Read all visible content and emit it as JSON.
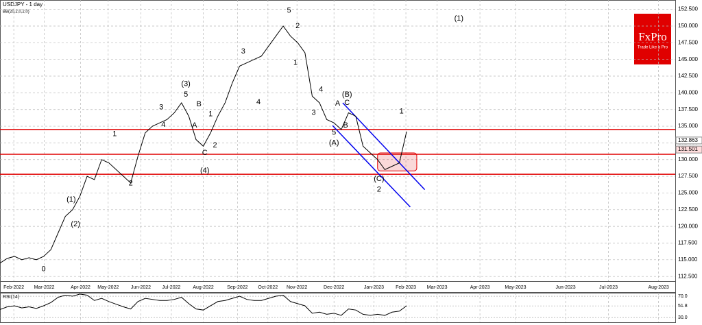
{
  "chart_data": [
    {
      "type": "line",
      "title": "USDJPY - 1 day",
      "subtitle": "BB(20,2,0,2,0)",
      "logo": {
        "brand": "FxPro",
        "tagline": "Trade Like a Pro"
      },
      "x": [
        0,
        1,
        2,
        3,
        4,
        5,
        6,
        7,
        8,
        9,
        10,
        11,
        12,
        13,
        14,
        15,
        16,
        17,
        18,
        19,
        20,
        21,
        22,
        23,
        24,
        25,
        26,
        27,
        28,
        29,
        30,
        31,
        32,
        33,
        34,
        35,
        36,
        37,
        38,
        39,
        40,
        41,
        42,
        43,
        44,
        45,
        46,
        47,
        48,
        49,
        50,
        51,
        52,
        53,
        54,
        55,
        56
      ],
      "series": [
        {
          "name": "USDJPY",
          "color": "#000000",
          "values": [
            114.5,
            115.2,
            115.5,
            115.0,
            115.3,
            115.0,
            115.5,
            116.5,
            119.0,
            121.5,
            122.5,
            124.5,
            127.5,
            127.0,
            130.0,
            129.5,
            128.5,
            127.5,
            126.5,
            130.5,
            134.0,
            135.0,
            135.5,
            136.0,
            137.0,
            138.5,
            136.5,
            133.0,
            132.0,
            134.0,
            136.5,
            138.5,
            141.5,
            144.0,
            144.5,
            145.0,
            145.5,
            147.0,
            148.5,
            150.0,
            148.5,
            147.5,
            146.0,
            139.5,
            138.5,
            136.0,
            135.5,
            134.5,
            137.0,
            136.5,
            132.0,
            131.0,
            130.0,
            128.5,
            129.0,
            129.5,
            134.2
          ]
        }
      ],
      "xlim": [
        0,
        93
      ],
      "xticks": [
        {
          "value": 1.9,
          "label": "Feb-2022"
        },
        {
          "value": 6.1,
          "label": "Mar-2022"
        },
        {
          "value": 11.1,
          "label": "Apr-2022"
        },
        {
          "value": 14.9,
          "label": "May-2022"
        },
        {
          "value": 19.4,
          "label": "Jun-2022"
        },
        {
          "value": 23.6,
          "label": "Jul-2022"
        },
        {
          "value": 28,
          "label": "Aug-2022"
        },
        {
          "value": 32.7,
          "label": "Sep-2022"
        },
        {
          "value": 36.9,
          "label": "Oct-2022"
        },
        {
          "value": 40.9,
          "label": "Nov-2022"
        },
        {
          "value": 46,
          "label": "Dec-2022"
        },
        {
          "value": 51.5,
          "label": "Jan-2023"
        },
        {
          "value": 55.9,
          "label": "Feb-2023"
        },
        {
          "value": 60.2,
          "label": "Mar-2023"
        },
        {
          "value": 66.1,
          "label": "Apr-2023"
        },
        {
          "value": 71,
          "label": "May-2023"
        },
        {
          "value": 77.9,
          "label": "Jun-2023"
        },
        {
          "value": 83.8,
          "label": "Jul-2023"
        },
        {
          "value": 90.7,
          "label": "Aug-2023"
        }
      ],
      "ylim": [
        111.8,
        153.9
      ],
      "yticks": [
        {
          "value": 112.5,
          "label": "112.500"
        },
        {
          "value": 115,
          "label": "115.000"
        },
        {
          "value": 117.5,
          "label": "117.500"
        },
        {
          "value": 120,
          "label": "120.000"
        },
        {
          "value": 122.5,
          "label": "122.500"
        },
        {
          "value": 125,
          "label": "125.000"
        },
        {
          "value": 127.5,
          "label": "127.500"
        },
        {
          "value": 130,
          "label": "130.000"
        },
        {
          "value": 132.5,
          "label": "132.500"
        },
        {
          "value": 135,
          "label": "135.000"
        },
        {
          "value": 137.5,
          "label": "137.500"
        },
        {
          "value": 140,
          "label": "140.000"
        },
        {
          "value": 142.5,
          "label": "142.500"
        },
        {
          "value": 145,
          "label": "145.000"
        },
        {
          "value": 147.5,
          "label": "147.500"
        },
        {
          "value": 150,
          "label": "150.000"
        },
        {
          "value": 152.5,
          "label": "152.500"
        }
      ],
      "price_labels": [
        {
          "value": 132.863,
          "label": "132.863",
          "color": "#ffffff"
        },
        {
          "value": 131.501,
          "label": "131.501",
          "color": "#ffdddd"
        }
      ],
      "grid": true,
      "levels": {
        "color": "#e00000",
        "values": [
          134.5,
          130.8,
          127.8
        ]
      },
      "zone": {
        "color": "#e00000",
        "x": [
          52,
          57.4
        ],
        "y": [
          128.3,
          131
        ]
      },
      "channel": {
        "color": "#0000ee",
        "lines": [
          {
            "x": [
              47.2,
              58.5
            ],
            "y": [
              138.5,
              125.5
            ]
          },
          {
            "x": [
              45.8,
              56.5
            ],
            "y": [
              135.1,
              122.9
            ]
          }
        ]
      },
      "annotations": [
        {
          "text": "0",
          "x": 6,
          "y": 113.6
        },
        {
          "text": "(1)",
          "x": 9.8,
          "y": 124
        },
        {
          "text": "(2)",
          "x": 10.4,
          "y": 120.3
        },
        {
          "text": "1",
          "x": 15.8,
          "y": 133.8
        },
        {
          "text": "2",
          "x": 18,
          "y": 126.4
        },
        {
          "text": "3",
          "x": 22.2,
          "y": 137.8
        },
        {
          "text": "4",
          "x": 22.5,
          "y": 135.2
        },
        {
          "text": "(3)",
          "x": 25.6,
          "y": 141.3
        },
        {
          "text": "5",
          "x": 25.6,
          "y": 139.7
        },
        {
          "text": "B",
          "x": 27.4,
          "y": 138.3
        },
        {
          "text": "A",
          "x": 26.8,
          "y": 135.1
        },
        {
          "text": "C",
          "x": 28.2,
          "y": 131
        },
        {
          "text": "(4)",
          "x": 28.2,
          "y": 128.3
        },
        {
          "text": "1",
          "x": 29,
          "y": 136.8
        },
        {
          "text": "2",
          "x": 29.6,
          "y": 132.1
        },
        {
          "text": "3",
          "x": 33.5,
          "y": 146.2
        },
        {
          "text": "4",
          "x": 35.6,
          "y": 138.6
        },
        {
          "text": "5",
          "x": 39.8,
          "y": 152.3
        },
        {
          "text": "2",
          "x": 41,
          "y": 150
        },
        {
          "text": "1",
          "x": 40.7,
          "y": 144.5
        },
        {
          "text": "4",
          "x": 44.2,
          "y": 140.5
        },
        {
          "text": "3",
          "x": 43.2,
          "y": 137
        },
        {
          "text": "(B)",
          "x": 47.8,
          "y": 139.7
        },
        {
          "text": "A",
          "x": 46.5,
          "y": 138.4
        },
        {
          "text": "C",
          "x": 47.8,
          "y": 138.5
        },
        {
          "text": "B",
          "x": 47.6,
          "y": 135.1
        },
        {
          "text": "5",
          "x": 46,
          "y": 134
        },
        {
          "text": "(A)",
          "x": 46,
          "y": 132.5
        },
        {
          "text": "(C)",
          "x": 52.2,
          "y": 127.1
        },
        {
          "text": "2",
          "x": 52.2,
          "y": 125.5
        },
        {
          "text": "1",
          "x": 55.3,
          "y": 137.2
        },
        {
          "text": "(1)",
          "x": 63.2,
          "y": 151.1
        }
      ]
    },
    {
      "type": "line",
      "title": "RSI(14)",
      "x": [
        0,
        1,
        2,
        3,
        4,
        5,
        6,
        7,
        8,
        9,
        10,
        11,
        12,
        13,
        14,
        15,
        16,
        17,
        18,
        19,
        20,
        21,
        22,
        23,
        24,
        25,
        26,
        27,
        28,
        29,
        30,
        31,
        32,
        33,
        34,
        35,
        36,
        37,
        38,
        39,
        40,
        41,
        42,
        43,
        44,
        45,
        46,
        47,
        48,
        49,
        50,
        51,
        52,
        53,
        54,
        55,
        56
      ],
      "series": [
        {
          "name": "RSI(14)",
          "color": "#000000",
          "values": [
            45,
            50,
            52,
            48,
            50,
            47,
            52,
            58,
            68,
            72,
            70,
            74,
            72,
            62,
            66,
            60,
            55,
            50,
            46,
            60,
            66,
            64,
            62,
            62,
            64,
            68,
            56,
            46,
            44,
            52,
            60,
            62,
            66,
            70,
            64,
            62,
            62,
            66,
            70,
            72,
            60,
            56,
            52,
            38,
            40,
            36,
            38,
            34,
            46,
            44,
            36,
            34,
            36,
            34,
            40,
            42,
            52
          ]
        }
      ],
      "xlim": [
        0,
        93
      ],
      "ylim": [
        21,
        76.5
      ],
      "yticks": [
        {
          "value": 70,
          "label": "70.0"
        },
        {
          "value": 51.8,
          "label": "51.8"
        },
        {
          "value": 30,
          "label": "30.0"
        }
      ]
    }
  ]
}
